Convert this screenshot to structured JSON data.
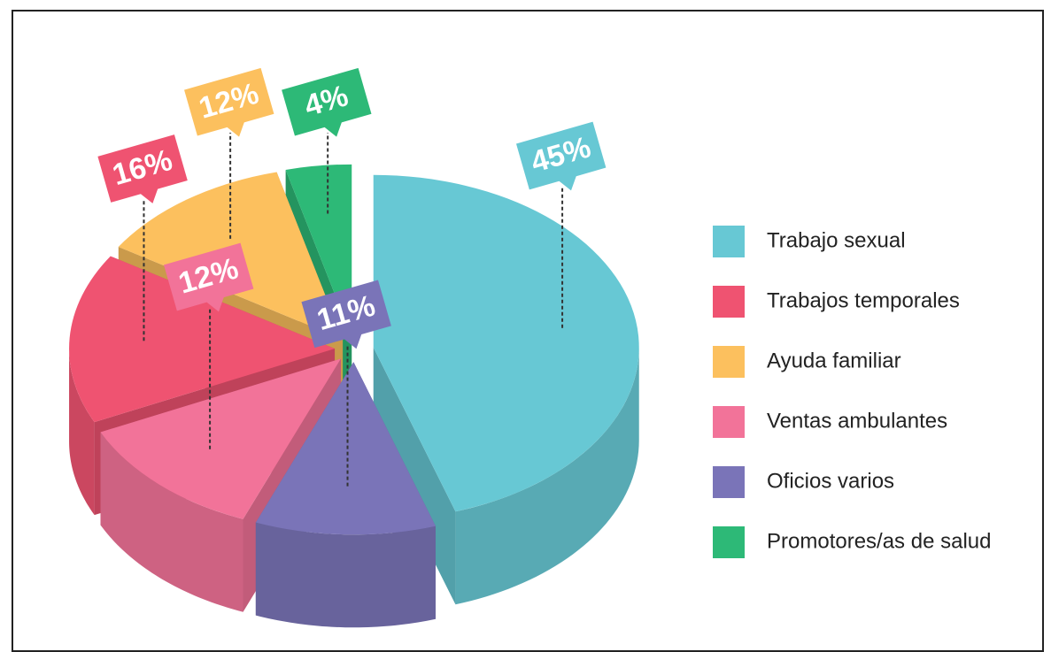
{
  "chart_data": {
    "type": "pie",
    "categories": [
      "Trabajo sexual",
      "Trabajos temporales",
      "Ayuda familiar",
      "Ventas ambulantes",
      "Oficios varios",
      "Promotores/as de salud"
    ],
    "values": [
      45,
      16,
      12,
      12,
      11,
      4
    ],
    "value_labels": [
      "45%",
      "16%",
      "12%",
      "12%",
      "11%",
      "4%"
    ],
    "colors": [
      "#67c8d4",
      "#ef5371",
      "#fcc05e",
      "#f27399",
      "#7a74b8",
      "#2db977"
    ],
    "legend": "right"
  }
}
